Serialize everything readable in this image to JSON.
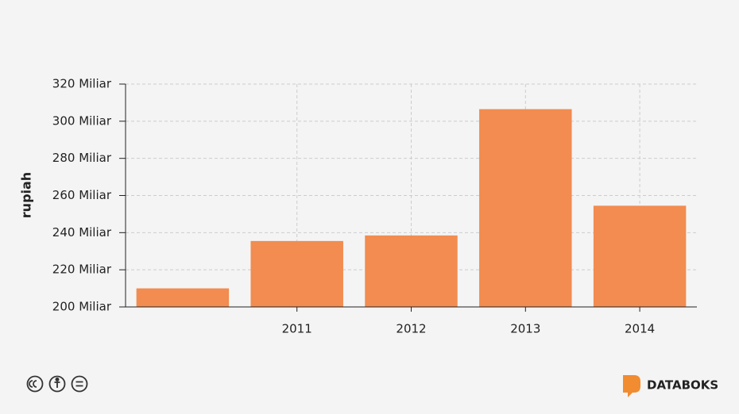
{
  "chart_data": {
    "type": "bar",
    "y_label": "rupiah",
    "categories": [
      null,
      "2011",
      "2012",
      "2013",
      "2014"
    ],
    "values": [
      210000000000,
      235500000000,
      238500000000,
      306500000000,
      254500000000
    ],
    "color": "#f28c50",
    "ylim": [
      200000000000,
      320000000000
    ],
    "yticks": [
      {
        "value": 200000000000,
        "label": "200 Miliar"
      },
      {
        "value": 220000000000,
        "label": "220 Miliar"
      },
      {
        "value": 240000000000,
        "label": "240 Miliar"
      },
      {
        "value": 260000000000,
        "label": "260 Miliar"
      },
      {
        "value": 280000000000,
        "label": "280 Miliar"
      },
      {
        "value": 300000000000,
        "label": "300 Miliar"
      },
      {
        "value": 320000000000,
        "label": "320 Miliar"
      }
    ],
    "grid": true
  },
  "footer": {
    "brand": "DATABOKS"
  }
}
